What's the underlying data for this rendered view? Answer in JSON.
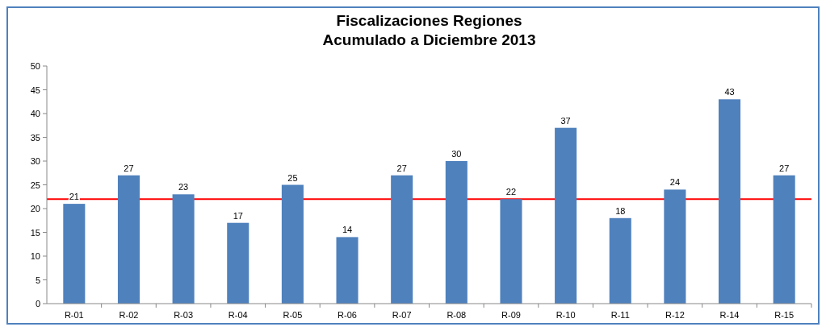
{
  "chart_data": {
    "type": "bar",
    "title": "Fiscalizaciones Regiones\nAcumulado a Diciembre 2013",
    "categories": [
      "R-01",
      "R-02",
      "R-03",
      "R-04",
      "R-05",
      "R-06",
      "R-07",
      "R-08",
      "R-09",
      "R-10",
      "R-11",
      "R-12",
      "R-14",
      "R-15"
    ],
    "values": [
      21,
      27,
      23,
      17,
      25,
      14,
      27,
      30,
      22,
      37,
      18,
      24,
      43,
      27
    ],
    "color": "#4f81bd",
    "ylim": [
      0,
      50
    ],
    "yticks": [
      0,
      5,
      10,
      15,
      20,
      25,
      30,
      35,
      40,
      45,
      50
    ],
    "grid": false,
    "data_labels": true,
    "ref_lines": [
      {
        "axis": "y",
        "value": 22,
        "color": "#ff0000"
      }
    ]
  }
}
